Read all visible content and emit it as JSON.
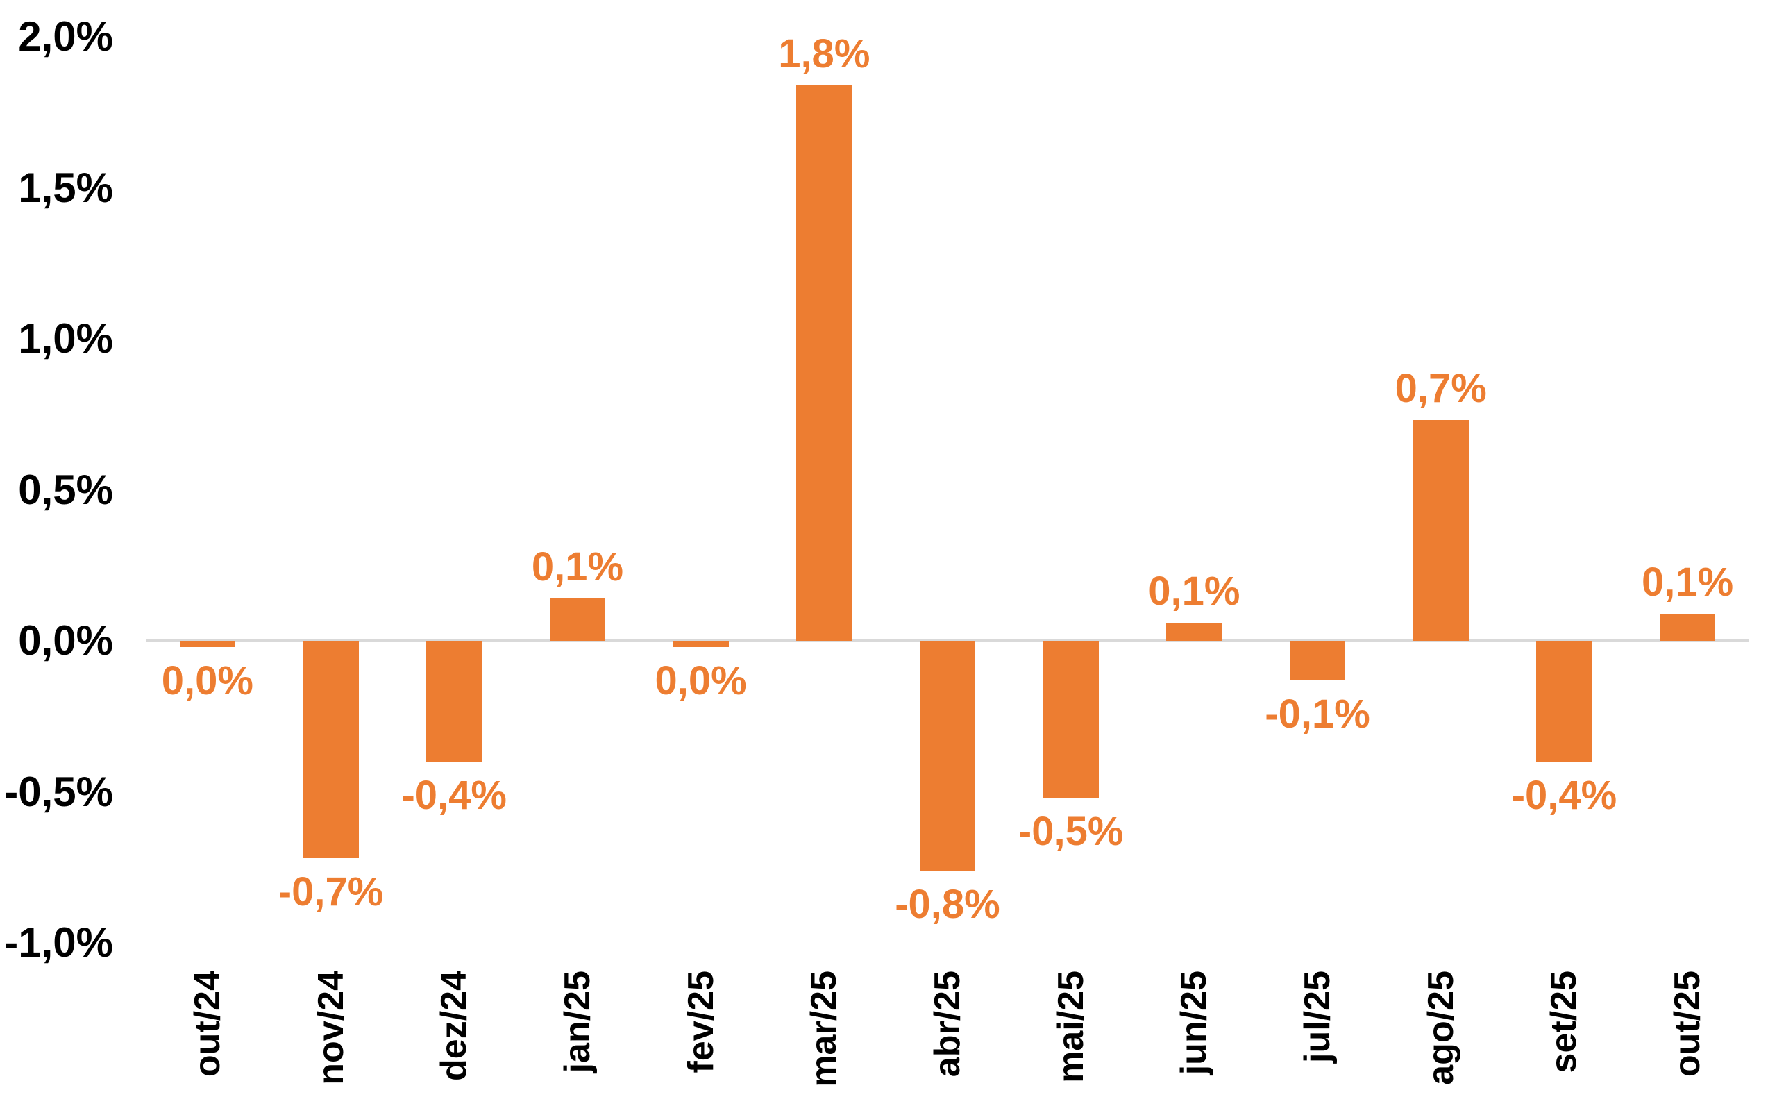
{
  "chart_data": {
    "type": "bar",
    "title": "",
    "categories": [
      "out/24",
      "nov/24",
      "dez/24",
      "jan/25",
      "fev/25",
      "mar/25",
      "abr/25",
      "mai/25",
      "jun/25",
      "jul/25",
      "ago/25",
      "set/25",
      "out/25"
    ],
    "values": [
      -0.02,
      -0.72,
      -0.4,
      0.14,
      -0.02,
      1.84,
      -0.76,
      -0.52,
      0.06,
      -0.13,
      0.73,
      -0.4,
      0.09
    ],
    "data_labels": [
      "0,0%",
      "-0,7%",
      "-0,4%",
      "0,1%",
      "0,0%",
      "1,8%",
      "-0,8%",
      "-0,5%",
      "0,1%",
      "-0,1%",
      "0,7%",
      "-0,4%",
      "0,1%"
    ],
    "y_ticks": {
      "labels": [
        "2,0%",
        "1,5%",
        "1,0%",
        "0,5%",
        "0,0%",
        "-0,5%",
        "-1,0%"
      ],
      "values": [
        2.0,
        1.5,
        1.0,
        0.5,
        0.0,
        -0.5,
        -1.0
      ]
    },
    "ylim": [
      -1.0,
      2.0
    ],
    "xlabel": "",
    "ylabel": "",
    "legend": "none",
    "grid": "off",
    "x_label_style": "rotated-90-ccw-bold",
    "colors": {
      "bar": "#ED7D31",
      "data_label": "#ED7D31",
      "axis_text": "#000000",
      "zero_line": "#D9D9D9",
      "background": "#FFFFFF"
    }
  }
}
